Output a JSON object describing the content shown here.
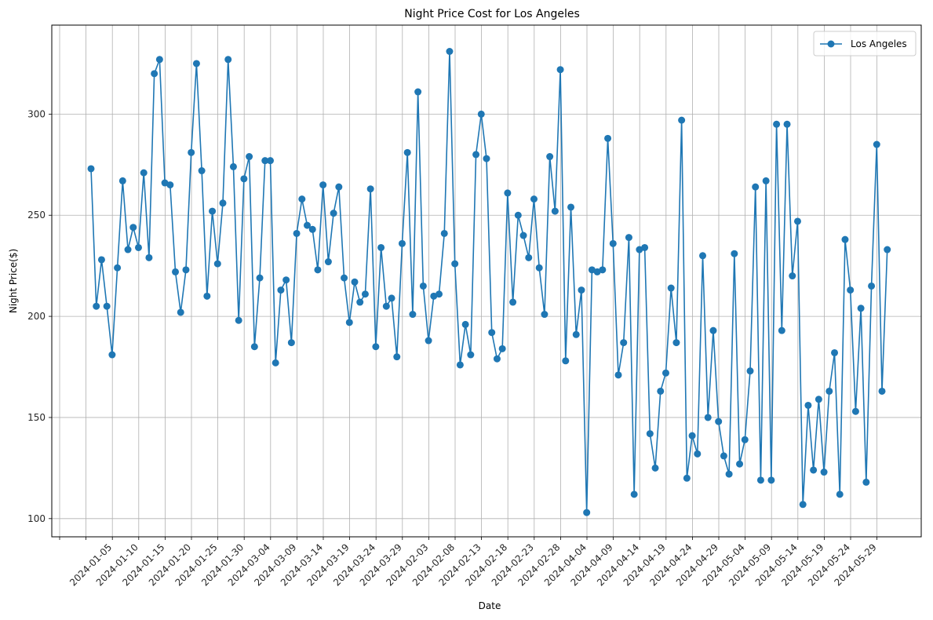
{
  "chart_data": {
    "type": "line",
    "title": "Night Price Cost for Los Angeles",
    "xlabel": "Date",
    "ylabel": "Night Price($)",
    "ylim": [
      91,
      344
    ],
    "yticks": [
      100,
      150,
      200,
      250,
      300
    ],
    "grid": true,
    "legend_position": "top-right",
    "x_tick_labels": [
      "",
      "",
      "2024-01-05",
      "2024-01-10",
      "2024-01-15",
      "2024-01-20",
      "2024-01-25",
      "2024-01-30",
      "2024-03-04",
      "2024-03-09",
      "2024-03-14",
      "2024-03-19",
      "2024-03-24",
      "2024-03-29",
      "2024-02-03",
      "2024-02-08",
      "2024-02-13",
      "2024-02-18",
      "2024-02-23",
      "2024-02-28",
      "2024-04-04",
      "2024-04-09",
      "2024-04-14",
      "2024-04-19",
      "2024-04-24",
      "2024-04-29",
      "2024-05-04",
      "2024-05-09",
      "2024-05-14",
      "2024-05-19",
      "2024-05-24",
      "2024-05-29"
    ],
    "series": [
      {
        "name": "Los Angeles",
        "color": "#1f77b4",
        "marker": "circle",
        "values": [
          273,
          205,
          228,
          205,
          181,
          224,
          267,
          233,
          244,
          234,
          271,
          229,
          320,
          327,
          266,
          265,
          222,
          202,
          223,
          281,
          325,
          272,
          210,
          252,
          226,
          256,
          327,
          274,
          198,
          268,
          279,
          185,
          219,
          277,
          277,
          177,
          213,
          218,
          187,
          241,
          258,
          245,
          243,
          223,
          265,
          227,
          251,
          264,
          219,
          197,
          217,
          207,
          211,
          263,
          185,
          234,
          205,
          209,
          180,
          236,
          281,
          201,
          311,
          215,
          188,
          210,
          211,
          241,
          331,
          226,
          176,
          196,
          181,
          280,
          300,
          278,
          192,
          179,
          184,
          261,
          207,
          250,
          240,
          229,
          258,
          224,
          201,
          279,
          252,
          322,
          178,
          254,
          191,
          213,
          103,
          223,
          222,
          223,
          288,
          236,
          171,
          187,
          239,
          112,
          233,
          234,
          142,
          125,
          163,
          172,
          214,
          187,
          297,
          120,
          141,
          132,
          230,
          150,
          193,
          148,
          131,
          122,
          231,
          127,
          139,
          173,
          264,
          119,
          267,
          119,
          295,
          193,
          295,
          220,
          247,
          107,
          156,
          124,
          159,
          123,
          163,
          182,
          112,
          238,
          213,
          153,
          204,
          118,
          215,
          285,
          163,
          233
        ]
      }
    ]
  }
}
